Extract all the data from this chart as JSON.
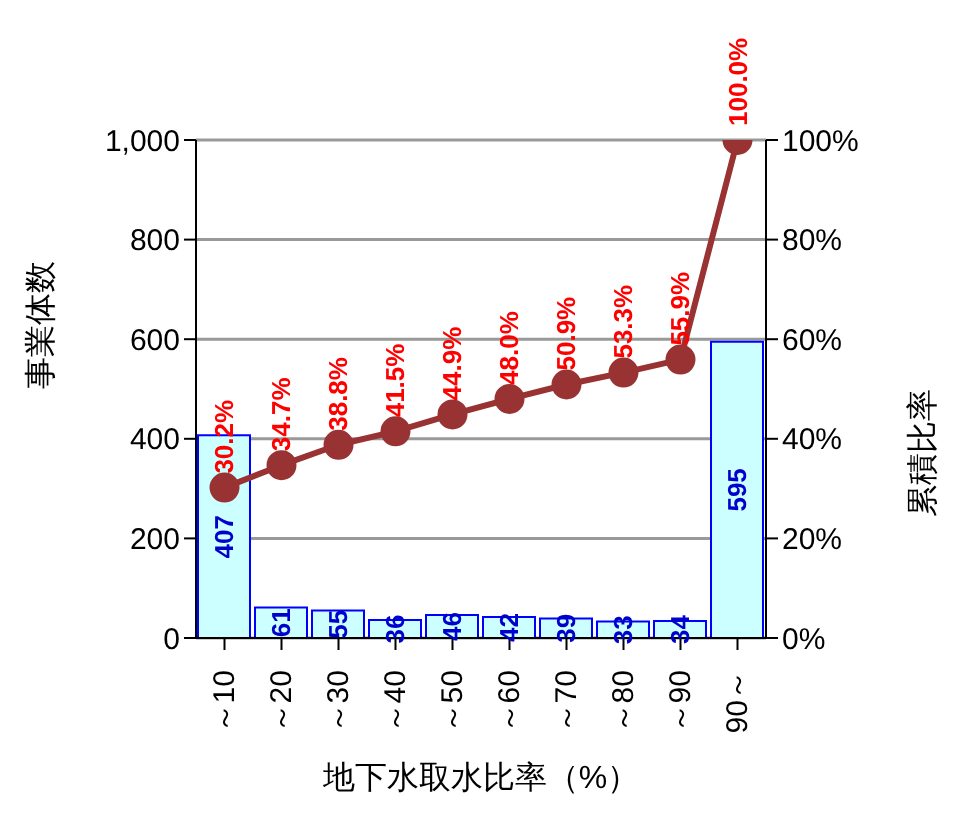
{
  "chart_data": {
    "type": "bar",
    "xlabel": "地下水取水比率（%）",
    "ylabel": "事業体数",
    "y2label": "累積比率",
    "categories": [
      "～10",
      "～20",
      "～30",
      "～40",
      "～50",
      "～60",
      "～70",
      "～80",
      "～90",
      "90～"
    ],
    "series": [
      {
        "color": "#ccffff",
        "values": [
          407,
          61,
          55,
          36,
          46,
          42,
          39,
          33,
          34,
          595
        ],
        "value_labels": [
          "407",
          "61",
          "55",
          "36",
          "46",
          "42",
          "39",
          "33",
          "34",
          "595"
        ]
      },
      {
        "type": "line",
        "axis": "y2",
        "color": "#993333",
        "values": [
          30.2,
          34.7,
          38.8,
          41.5,
          44.9,
          48.0,
          50.9,
          53.3,
          55.9,
          100.0
        ],
        "value_labels": [
          "30.2%",
          "34.7%",
          "38.8%",
          "41.5%",
          "44.9%",
          "48.0%",
          "50.9%",
          "53.3%",
          "55.9%",
          "100.0%"
        ]
      }
    ],
    "ylim": [
      0,
      1000
    ],
    "yticks": [
      0,
      200,
      400,
      600,
      800,
      {
        "value": 1000,
        "label": "1,000"
      }
    ],
    "y2lim": [
      0,
      100
    ],
    "y2ticks": [
      {
        "value": 0,
        "label": "0%"
      },
      {
        "value": 20,
        "label": "20%"
      },
      {
        "value": 40,
        "label": "40%"
      },
      {
        "value": 60,
        "label": "60%"
      },
      {
        "value": 80,
        "label": "80%"
      },
      {
        "value": 100,
        "label": "100%"
      }
    ],
    "grid": "y",
    "marker": "circle"
  }
}
